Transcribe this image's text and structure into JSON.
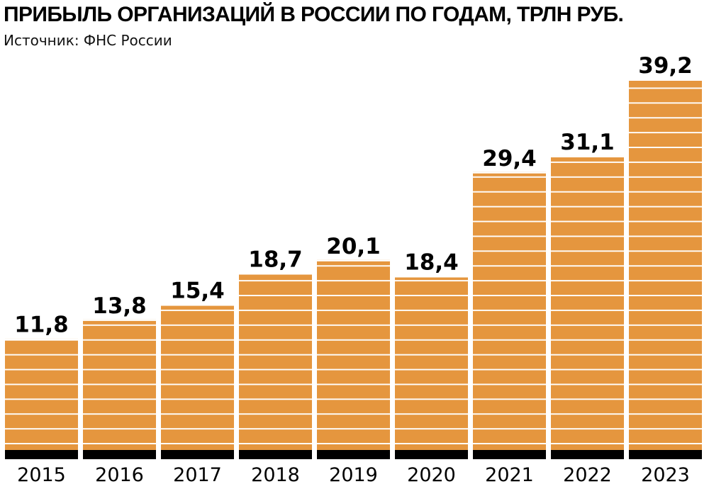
{
  "header": {
    "title": "ПРИБЫЛЬ ОРГАНИЗАЦИЙ В РОССИИ ПО ГОДАМ, ТРЛН РУБ.",
    "source": "Источник: ФНС России"
  },
  "colors": {
    "bar": "#e5963e",
    "stripe": "#ffffff",
    "baseline": "#000000",
    "text": "#000000"
  },
  "chart_data": {
    "type": "bar",
    "title": "ПРИБЫЛЬ ОРГАНИЗАЦИЙ В РОССИИ ПО ГОДАМ, ТРЛН РУБ.",
    "categories": [
      "2015",
      "2016",
      "2017",
      "2018",
      "2019",
      "2020",
      "2021",
      "2022",
      "2023"
    ],
    "values": [
      11.8,
      13.8,
      15.4,
      18.7,
      20.1,
      18.4,
      29.4,
      31.1,
      39.2
    ],
    "value_labels": [
      "11,8",
      "13,8",
      "15,4",
      "18,7",
      "20,1",
      "18,4",
      "29,4",
      "31,1",
      "39,2"
    ],
    "xlabel": "",
    "ylabel": "",
    "ylim": [
      0,
      39.2
    ],
    "grid": false,
    "legend": "none"
  }
}
